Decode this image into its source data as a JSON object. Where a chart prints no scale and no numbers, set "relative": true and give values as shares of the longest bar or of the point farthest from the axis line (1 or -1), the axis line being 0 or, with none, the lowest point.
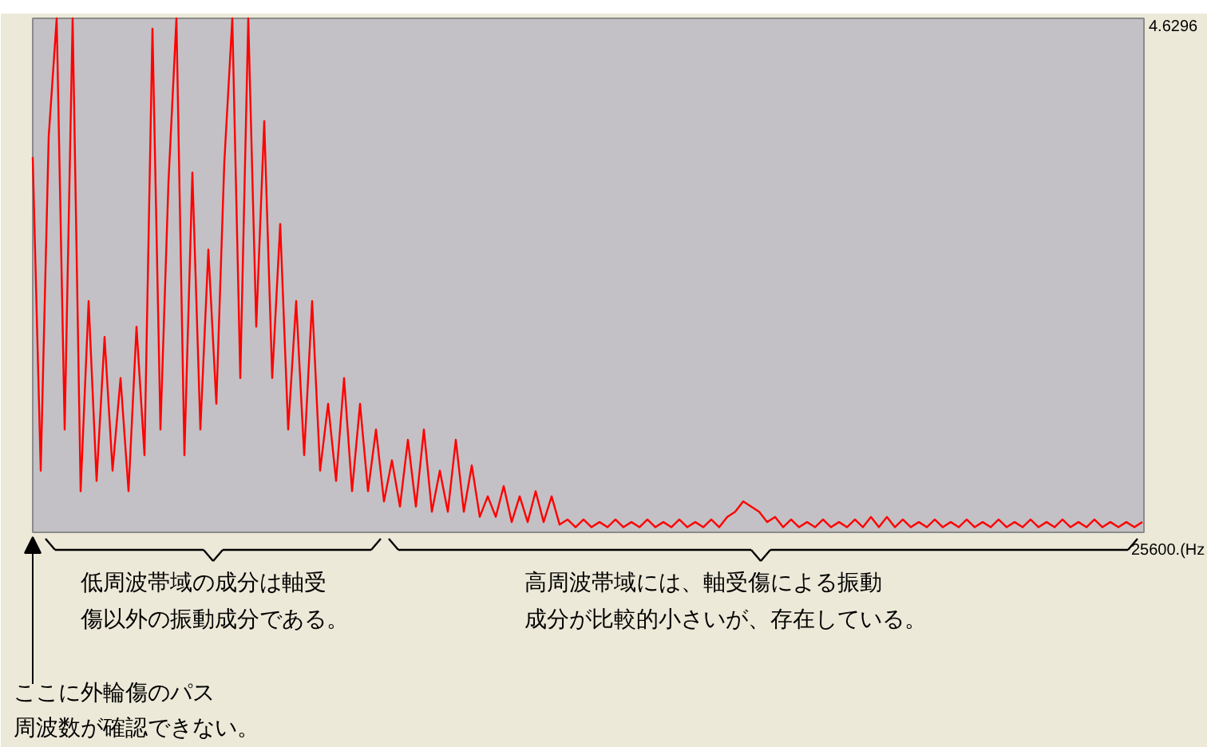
{
  "chart_data": {
    "type": "line",
    "relative": true,
    "color": "#ff0000",
    "categories": [
      null,
      null,
      null,
      null,
      null,
      null,
      null,
      null,
      null,
      null,
      null,
      null,
      null,
      null,
      null,
      null,
      null,
      null,
      null,
      null,
      null,
      null,
      null,
      null,
      null,
      null,
      null,
      null,
      null,
      null,
      null,
      null,
      null,
      null,
      null,
      null,
      null,
      null,
      null,
      null,
      null,
      null,
      null,
      null,
      null,
      null,
      null,
      null,
      null,
      null,
      null,
      null,
      null,
      null,
      null,
      null,
      null,
      null,
      null,
      null,
      null,
      null,
      null,
      null,
      null,
      null,
      null,
      null,
      null,
      null,
      null,
      null,
      null,
      null,
      null,
      null,
      null,
      null,
      null,
      null,
      null,
      null,
      null,
      null,
      null,
      null,
      null,
      null,
      null,
      null,
      null,
      null,
      null,
      null,
      null,
      null,
      null,
      null,
      null,
      null,
      null,
      null,
      null,
      null,
      null,
      null,
      null,
      null,
      null,
      null,
      null,
      null,
      null,
      null,
      null,
      null,
      null,
      null,
      null,
      null,
      null,
      null,
      null,
      null,
      null,
      null,
      null,
      null,
      null,
      null,
      null,
      null,
      null,
      null,
      null,
      null,
      null,
      null,
      null,
      null
    ],
    "values": [
      0.73,
      0.12,
      0.77,
      1.0,
      0.2,
      1.0,
      0.08,
      0.45,
      0.1,
      0.38,
      0.12,
      0.3,
      0.08,
      0.4,
      0.15,
      0.98,
      0.2,
      0.68,
      1.0,
      0.15,
      0.7,
      0.2,
      0.55,
      0.25,
      0.72,
      1.0,
      0.3,
      1.0,
      0.4,
      0.8,
      0.3,
      0.6,
      0.2,
      0.45,
      0.15,
      0.45,
      0.12,
      0.25,
      0.1,
      0.3,
      0.08,
      0.25,
      0.08,
      0.2,
      0.06,
      0.14,
      0.05,
      0.18,
      0.05,
      0.2,
      0.04,
      0.12,
      0.04,
      0.18,
      0.04,
      0.13,
      0.03,
      0.07,
      0.03,
      0.09,
      0.02,
      0.07,
      0.02,
      0.08,
      0.02,
      0.07,
      0.015,
      0.025,
      0.01,
      0.025,
      0.01,
      0.02,
      0.01,
      0.025,
      0.01,
      0.02,
      0.01,
      0.025,
      0.01,
      0.02,
      0.01,
      0.025,
      0.01,
      0.02,
      0.01,
      0.025,
      0.01,
      0.03,
      0.04,
      0.06,
      0.05,
      0.04,
      0.02,
      0.03,
      0.01,
      0.025,
      0.01,
      0.02,
      0.01,
      0.025,
      0.01,
      0.02,
      0.01,
      0.025,
      0.01,
      0.03,
      0.01,
      0.03,
      0.01,
      0.025,
      0.01,
      0.02,
      0.01,
      0.025,
      0.01,
      0.02,
      0.01,
      0.025,
      0.01,
      0.02,
      0.01,
      0.025,
      0.01,
      0.02,
      0.01,
      0.025,
      0.01,
      0.02,
      0.01,
      0.025,
      0.01,
      0.02,
      0.01,
      0.025,
      0.01,
      0.02,
      0.01,
      0.02,
      0.01,
      0.02
    ],
    "annotations": [
      "4.6296",
      "25600.(Hz",
      "低周波帯域の成分は軸受",
      "傷以外の振動成分である。",
      "高周波帯域には、軸受傷による振動",
      "成分が比較的小さいが、存在している。",
      "ここに外輪傷のパス",
      "周波数が確認できない。"
    ]
  }
}
